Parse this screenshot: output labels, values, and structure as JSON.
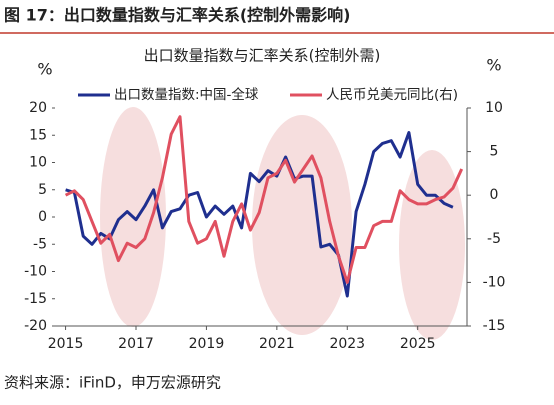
{
  "header": {
    "title": "图 17：出口数量指数与汇率关系(控制外需影响)"
  },
  "source": "资料来源：iFinD，申万宏源研究",
  "chart_data": {
    "type": "line",
    "title": "出口数量指数与汇率关系(控制外需)",
    "y_label": "%",
    "y2_label": "%",
    "x": [
      2015,
      2015.25,
      2015.5,
      2015.75,
      2016,
      2016.25,
      2016.5,
      2016.75,
      2017,
      2017.25,
      2017.5,
      2017.75,
      2018,
      2018.25,
      2018.5,
      2018.75,
      2019,
      2019.25,
      2019.5,
      2019.75,
      2020,
      2020.25,
      2020.5,
      2020.75,
      2021,
      2021.25,
      2021.5,
      2021.75,
      2022,
      2022.25,
      2022.5,
      2022.75,
      2023,
      2023.25,
      2023.5,
      2023.75,
      2024,
      2024.25,
      2024.5,
      2024.75,
      2025,
      2025.25,
      2025.5,
      2025.75,
      2026,
      2026.25
    ],
    "series": [
      {
        "name": "出口数量指数:中国-全球",
        "color": "#1f2f8f",
        "axis": "y",
        "values": [
          5,
          4.5,
          -3.5,
          -5,
          -3,
          -4,
          -0.5,
          1,
          -0.5,
          2,
          5,
          -2,
          1,
          1.5,
          4,
          4.5,
          0,
          2,
          0.5,
          2,
          -2,
          8,
          6.5,
          8.5,
          7.5,
          11,
          7,
          7.5,
          7.5,
          -5.5,
          -5,
          -7,
          -14.5,
          1,
          6,
          12,
          13.5,
          14,
          11,
          15.5,
          6,
          4,
          4,
          2.5,
          1.8,
          null
        ]
      },
      {
        "name": "人民币兑美元同比(右)",
        "color": "#e05060",
        "axis": "y2",
        "values": [
          0,
          0.5,
          -0.5,
          -3,
          -5.5,
          -4.5,
          -7.5,
          -5.5,
          -6,
          -5,
          -2,
          2,
          7,
          9,
          -3,
          -5.5,
          -5,
          -3,
          -7,
          -3,
          -1,
          -4,
          -2,
          2,
          2.5,
          4,
          1.5,
          3,
          4.5,
          2,
          -3,
          -7,
          -10,
          -6,
          -6,
          -3.5,
          -3,
          -3,
          0.5,
          -0.5,
          -1,
          -1,
          -0.5,
          -0.2,
          0.8,
          3
        ]
      }
    ],
    "xlim": [
      2014.7,
      2026.4
    ],
    "xticks": [
      2015,
      2017,
      2019,
      2021,
      2023,
      2025
    ],
    "ylim": [
      -20,
      20
    ],
    "yticks": [
      -20,
      -15,
      -10,
      -5,
      0,
      5,
      10,
      15,
      20
    ],
    "y2lim": [
      -15,
      10
    ],
    "y2ticks": [
      -15,
      -10,
      -5,
      0,
      5,
      10
    ]
  }
}
